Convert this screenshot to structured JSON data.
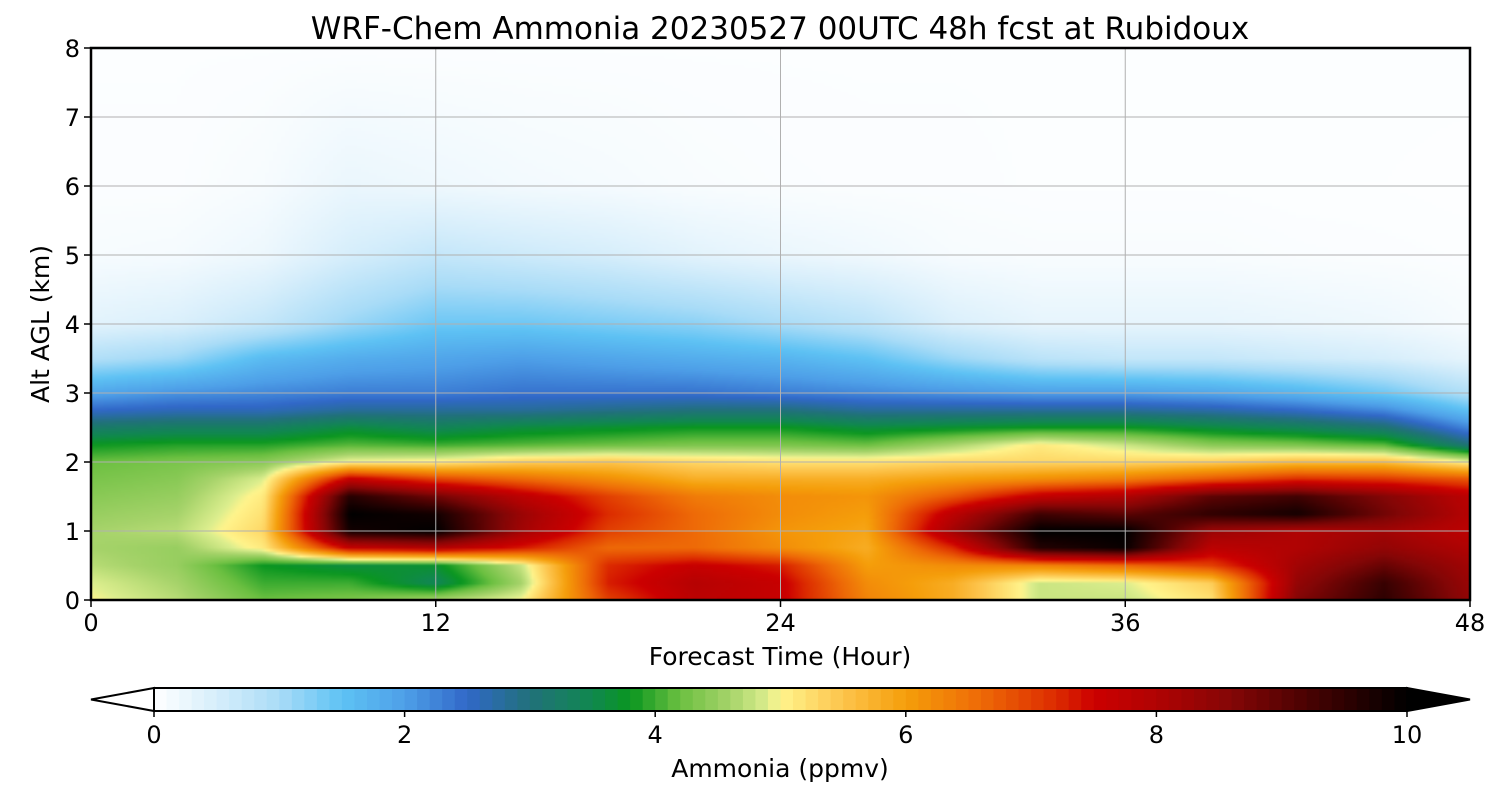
{
  "chart_data": {
    "type": "heatmap",
    "title": "WRF-Chem Ammonia  20230527 00UTC 48h fcst at Rubidoux",
    "xlabel": "Forecast Time (Hour)",
    "ylabel": "Alt AGL (km)",
    "xlim": [
      0,
      48
    ],
    "ylim": [
      0,
      8
    ],
    "x_ticks": [
      "0",
      "12",
      "24",
      "36",
      "48"
    ],
    "y_ticks": [
      "0",
      "1",
      "2",
      "3",
      "4",
      "5",
      "6",
      "7",
      "8"
    ],
    "grid": true,
    "colorbar": {
      "label": "Ammonia  (ppmv)",
      "range": [
        0,
        10
      ],
      "ticks": [
        "0",
        "2",
        "4",
        "6",
        "8",
        "10"
      ],
      "extend": "both",
      "orientation": "horizontal",
      "colors": [
        {
          "v": 0.0,
          "c": "#ffffff"
        },
        {
          "v": 0.5,
          "c": "#d6eefb"
        },
        {
          "v": 1.0,
          "c": "#a9dcf7"
        },
        {
          "v": 1.5,
          "c": "#5ec2f4"
        },
        {
          "v": 2.0,
          "c": "#4e9fe8"
        },
        {
          "v": 2.5,
          "c": "#3168c8"
        },
        {
          "v": 3.0,
          "c": "#21717a"
        },
        {
          "v": 3.5,
          "c": "#10884f"
        },
        {
          "v": 3.8,
          "c": "#0a9620"
        },
        {
          "v": 4.2,
          "c": "#6cc041"
        },
        {
          "v": 4.6,
          "c": "#a6d36a"
        },
        {
          "v": 4.9,
          "c": "#dcee8e"
        },
        {
          "v": 5.0,
          "c": "#fff48c"
        },
        {
          "v": 5.5,
          "c": "#fdc44c"
        },
        {
          "v": 6.0,
          "c": "#f59e0a"
        },
        {
          "v": 6.6,
          "c": "#ee6a07"
        },
        {
          "v": 7.2,
          "c": "#dc2b00"
        },
        {
          "v": 7.5,
          "c": "#cc0000"
        },
        {
          "v": 8.0,
          "c": "#b00303"
        },
        {
          "v": 8.6,
          "c": "#840606"
        },
        {
          "v": 9.2,
          "c": "#4a0202"
        },
        {
          "v": 10.0,
          "c": "#000000"
        }
      ]
    },
    "field": {
      "description": "Ammonia concentration (ppmv) on a forecast-hour × altitude grid; rows are altitude levels (km), columns are forecast hours",
      "hours": [
        0,
        3,
        6,
        9,
        12,
        15,
        18,
        21,
        24,
        27,
        30,
        33,
        36,
        39,
        42,
        45,
        48
      ],
      "altitudes_km": [
        0,
        0.25,
        0.5,
        0.75,
        1.0,
        1.25,
        1.5,
        1.75,
        2.0,
        2.25,
        2.5,
        2.75,
        3.0,
        3.5,
        4.0,
        5.0,
        6.0,
        8.0
      ],
      "values": [
        [
          5.0,
          4.7,
          4.2,
          4.3,
          4.6,
          5.0,
          7.0,
          7.8,
          7.6,
          6.3,
          5.8,
          4.8,
          4.8,
          5.2,
          8.6,
          9.5,
          8.4
        ],
        [
          4.9,
          4.6,
          4.0,
          4.0,
          3.4,
          4.6,
          7.3,
          7.9,
          7.6,
          6.2,
          5.8,
          4.8,
          4.9,
          5.4,
          8.4,
          9.4,
          8.3
        ],
        [
          4.7,
          4.5,
          3.8,
          3.6,
          3.7,
          4.8,
          7.2,
          7.6,
          7.3,
          6.0,
          6.2,
          6.3,
          6.6,
          7.0,
          8.2,
          8.9,
          8.2
        ],
        [
          4.6,
          4.5,
          5.1,
          7.6,
          7.9,
          7.3,
          6.6,
          6.6,
          6.2,
          5.8,
          7.2,
          9.6,
          9.9,
          7.8,
          8.0,
          8.4,
          8.0
        ],
        [
          4.6,
          4.7,
          5.3,
          9.8,
          10.0,
          8.2,
          7.0,
          6.6,
          6.1,
          5.9,
          8.2,
          10.0,
          10.0,
          8.3,
          8.0,
          8.2,
          7.8
        ],
        [
          4.5,
          4.6,
          5.2,
          10.0,
          9.8,
          8.3,
          7.2,
          6.6,
          6.2,
          6.0,
          7.8,
          9.3,
          9.0,
          9.5,
          9.8,
          8.8,
          7.9
        ],
        [
          4.4,
          4.5,
          5.1,
          9.6,
          8.8,
          7.8,
          7.0,
          6.4,
          6.2,
          6.1,
          6.8,
          7.7,
          8.0,
          9.0,
          9.3,
          8.6,
          7.8
        ],
        [
          4.3,
          4.4,
          4.9,
          7.7,
          7.0,
          6.6,
          6.2,
          5.8,
          5.8,
          5.8,
          6.0,
          6.2,
          6.4,
          6.8,
          7.2,
          7.1,
          6.8
        ],
        [
          4.2,
          4.3,
          4.4,
          5.0,
          5.1,
          5.4,
          5.5,
          5.3,
          5.2,
          5.2,
          5.3,
          5.3,
          5.3,
          5.4,
          5.6,
          5.6,
          5.0
        ],
        [
          3.8,
          3.9,
          3.9,
          4.1,
          4.0,
          4.1,
          4.2,
          4.3,
          4.3,
          4.2,
          4.6,
          5.1,
          4.8,
          4.4,
          4.3,
          4.1,
          3.0
        ],
        [
          3.2,
          3.3,
          3.3,
          3.6,
          3.4,
          3.6,
          3.7,
          3.8,
          3.8,
          3.6,
          3.7,
          3.8,
          3.8,
          3.6,
          3.4,
          3.1,
          2.2
        ],
        [
          2.5,
          2.6,
          2.6,
          2.8,
          2.8,
          2.8,
          2.9,
          3.0,
          3.0,
          2.8,
          2.8,
          2.8,
          2.8,
          2.7,
          2.5,
          2.2,
          1.5
        ],
        [
          1.9,
          2.1,
          2.2,
          2.3,
          2.3,
          2.4,
          2.4,
          2.4,
          2.3,
          2.2,
          2.1,
          2.0,
          2.0,
          1.9,
          1.7,
          1.4,
          0.9
        ],
        [
          0.9,
          1.1,
          1.6,
          1.8,
          1.9,
          2.0,
          1.9,
          1.8,
          1.7,
          1.5,
          1.1,
          0.8,
          0.7,
          0.7,
          0.6,
          0.5,
          0.3
        ],
        [
          0.35,
          0.45,
          0.7,
          1.1,
          1.4,
          1.4,
          1.3,
          1.2,
          1.0,
          0.8,
          0.45,
          0.3,
          0.3,
          0.3,
          0.25,
          0.2,
          0.1
        ],
        [
          0.1,
          0.12,
          0.22,
          0.5,
          0.7,
          0.6,
          0.5,
          0.35,
          0.25,
          0.18,
          0.1,
          0.08,
          0.08,
          0.08,
          0.06,
          0.05,
          0.04
        ],
        [
          0.05,
          0.05,
          0.1,
          0.25,
          0.2,
          0.15,
          0.12,
          0.08,
          0.06,
          0.05,
          0.05,
          0.04,
          0.04,
          0.04,
          0.03,
          0.03,
          0.02
        ],
        [
          0.04,
          0.04,
          0.04,
          0.04,
          0.04,
          0.04,
          0.04,
          0.04,
          0.04,
          0.04,
          0.04,
          0.04,
          0.04,
          0.04,
          0.04,
          0.04,
          0.04
        ]
      ]
    }
  }
}
